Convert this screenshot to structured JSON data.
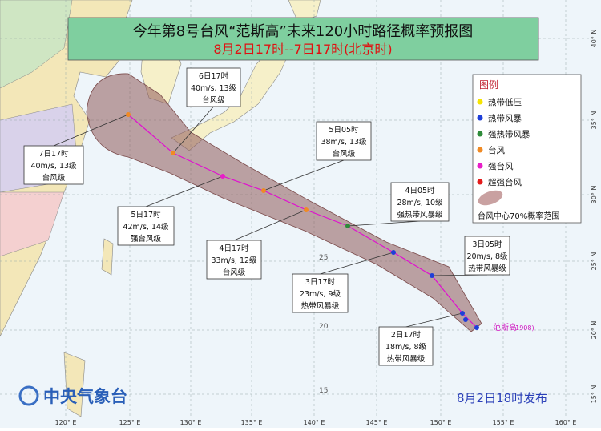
{
  "header": {
    "title": "今年第8号台风“范斯高”未来120小时路径概率预报图",
    "subtitle": "8月2日17时--7日17时(北京时)"
  },
  "legend": {
    "title": "图例",
    "items": [
      {
        "label": "热带低压",
        "color": "#f5e400"
      },
      {
        "label": "热带风暴",
        "color": "#1f3fd8"
      },
      {
        "label": "强热带风暴",
        "color": "#2e8b3a"
      },
      {
        "label": "台风",
        "color": "#f08a24"
      },
      {
        "label": "强台风",
        "color": "#e81ec8"
      },
      {
        "label": "超强台风",
        "color": "#e41b1b"
      }
    ],
    "cone": "台风中心70%概率范围"
  },
  "track_labels": [
    {
      "time": "2日17时",
      "wind": "18m/s, 8级",
      "grade": "热带风暴级"
    },
    {
      "time": "3日05时",
      "wind": "20m/s, 8级",
      "grade": "热带风暴级"
    },
    {
      "time": "3日17时",
      "wind": "23m/s, 9级",
      "grade": "热带风暴级"
    },
    {
      "time": "4日05时",
      "wind": "28m/s, 10级",
      "grade": "强热带风暴级"
    },
    {
      "time": "4日17时",
      "wind": "33m/s, 12级",
      "grade": "台风级"
    },
    {
      "time": "5日05时",
      "wind": "38m/s, 13级",
      "grade": "台风级"
    },
    {
      "time": "5日17时",
      "wind": "42m/s, 14级",
      "grade": "强台风级"
    },
    {
      "time": "6日17时",
      "wind": "40m/s, 13级",
      "grade": "台风级"
    },
    {
      "time": "7日17时",
      "wind": "40m/s, 13级",
      "grade": "台风级"
    }
  ],
  "storm": {
    "name": "范斯高",
    "id": "(1908)"
  },
  "footer": {
    "agency": "中央气象台",
    "issued": "8月2日18时发布"
  },
  "axes": {
    "lon": [
      "120° E",
      "125° E",
      "130° E",
      "135° E",
      "140° E",
      "145° E",
      "150° E",
      "155° E",
      "160° E"
    ],
    "lat": [
      "40° N",
      "35° N",
      "30° N",
      "25° N",
      "20° N",
      "15° N"
    ],
    "inner_lat": [
      "25",
      "20",
      "15"
    ]
  }
}
